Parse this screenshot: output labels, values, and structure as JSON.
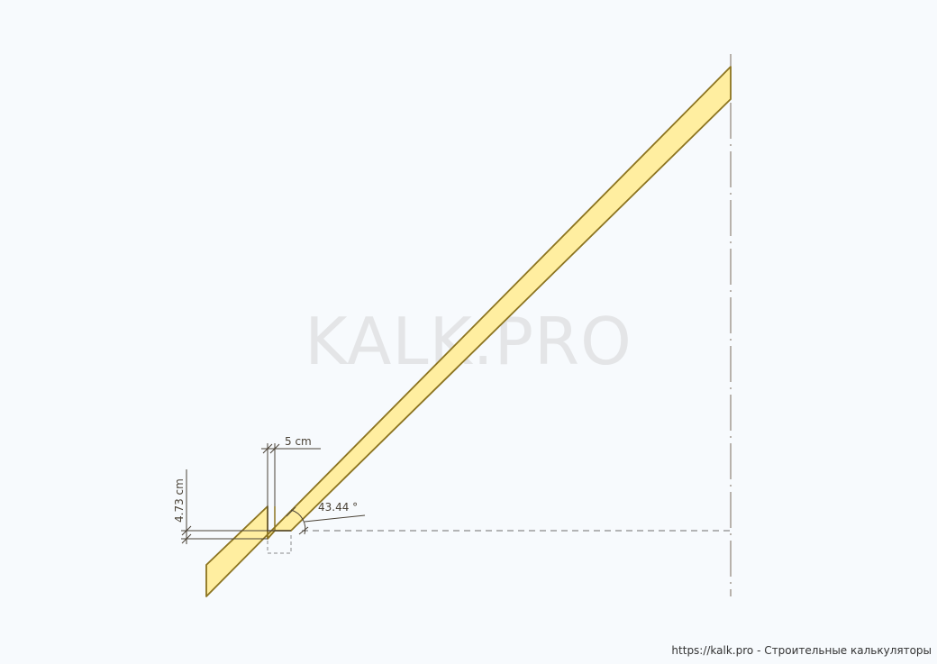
{
  "watermark": "KALK.PRO",
  "dimensions": {
    "height_label": "4.73 cm",
    "width_label": "5 cm",
    "angle_label": "43.44 °"
  },
  "footer": {
    "url": "https://kalk.pro",
    "separator": " - ",
    "text": "Строительные калькуляторы"
  },
  "colors": {
    "rafter_fill": "#ffeea0",
    "rafter_stroke": "#8c7420",
    "dim_line": "#4a4236",
    "axis_line": "#7a6a5a",
    "background": "#f7fafd"
  }
}
